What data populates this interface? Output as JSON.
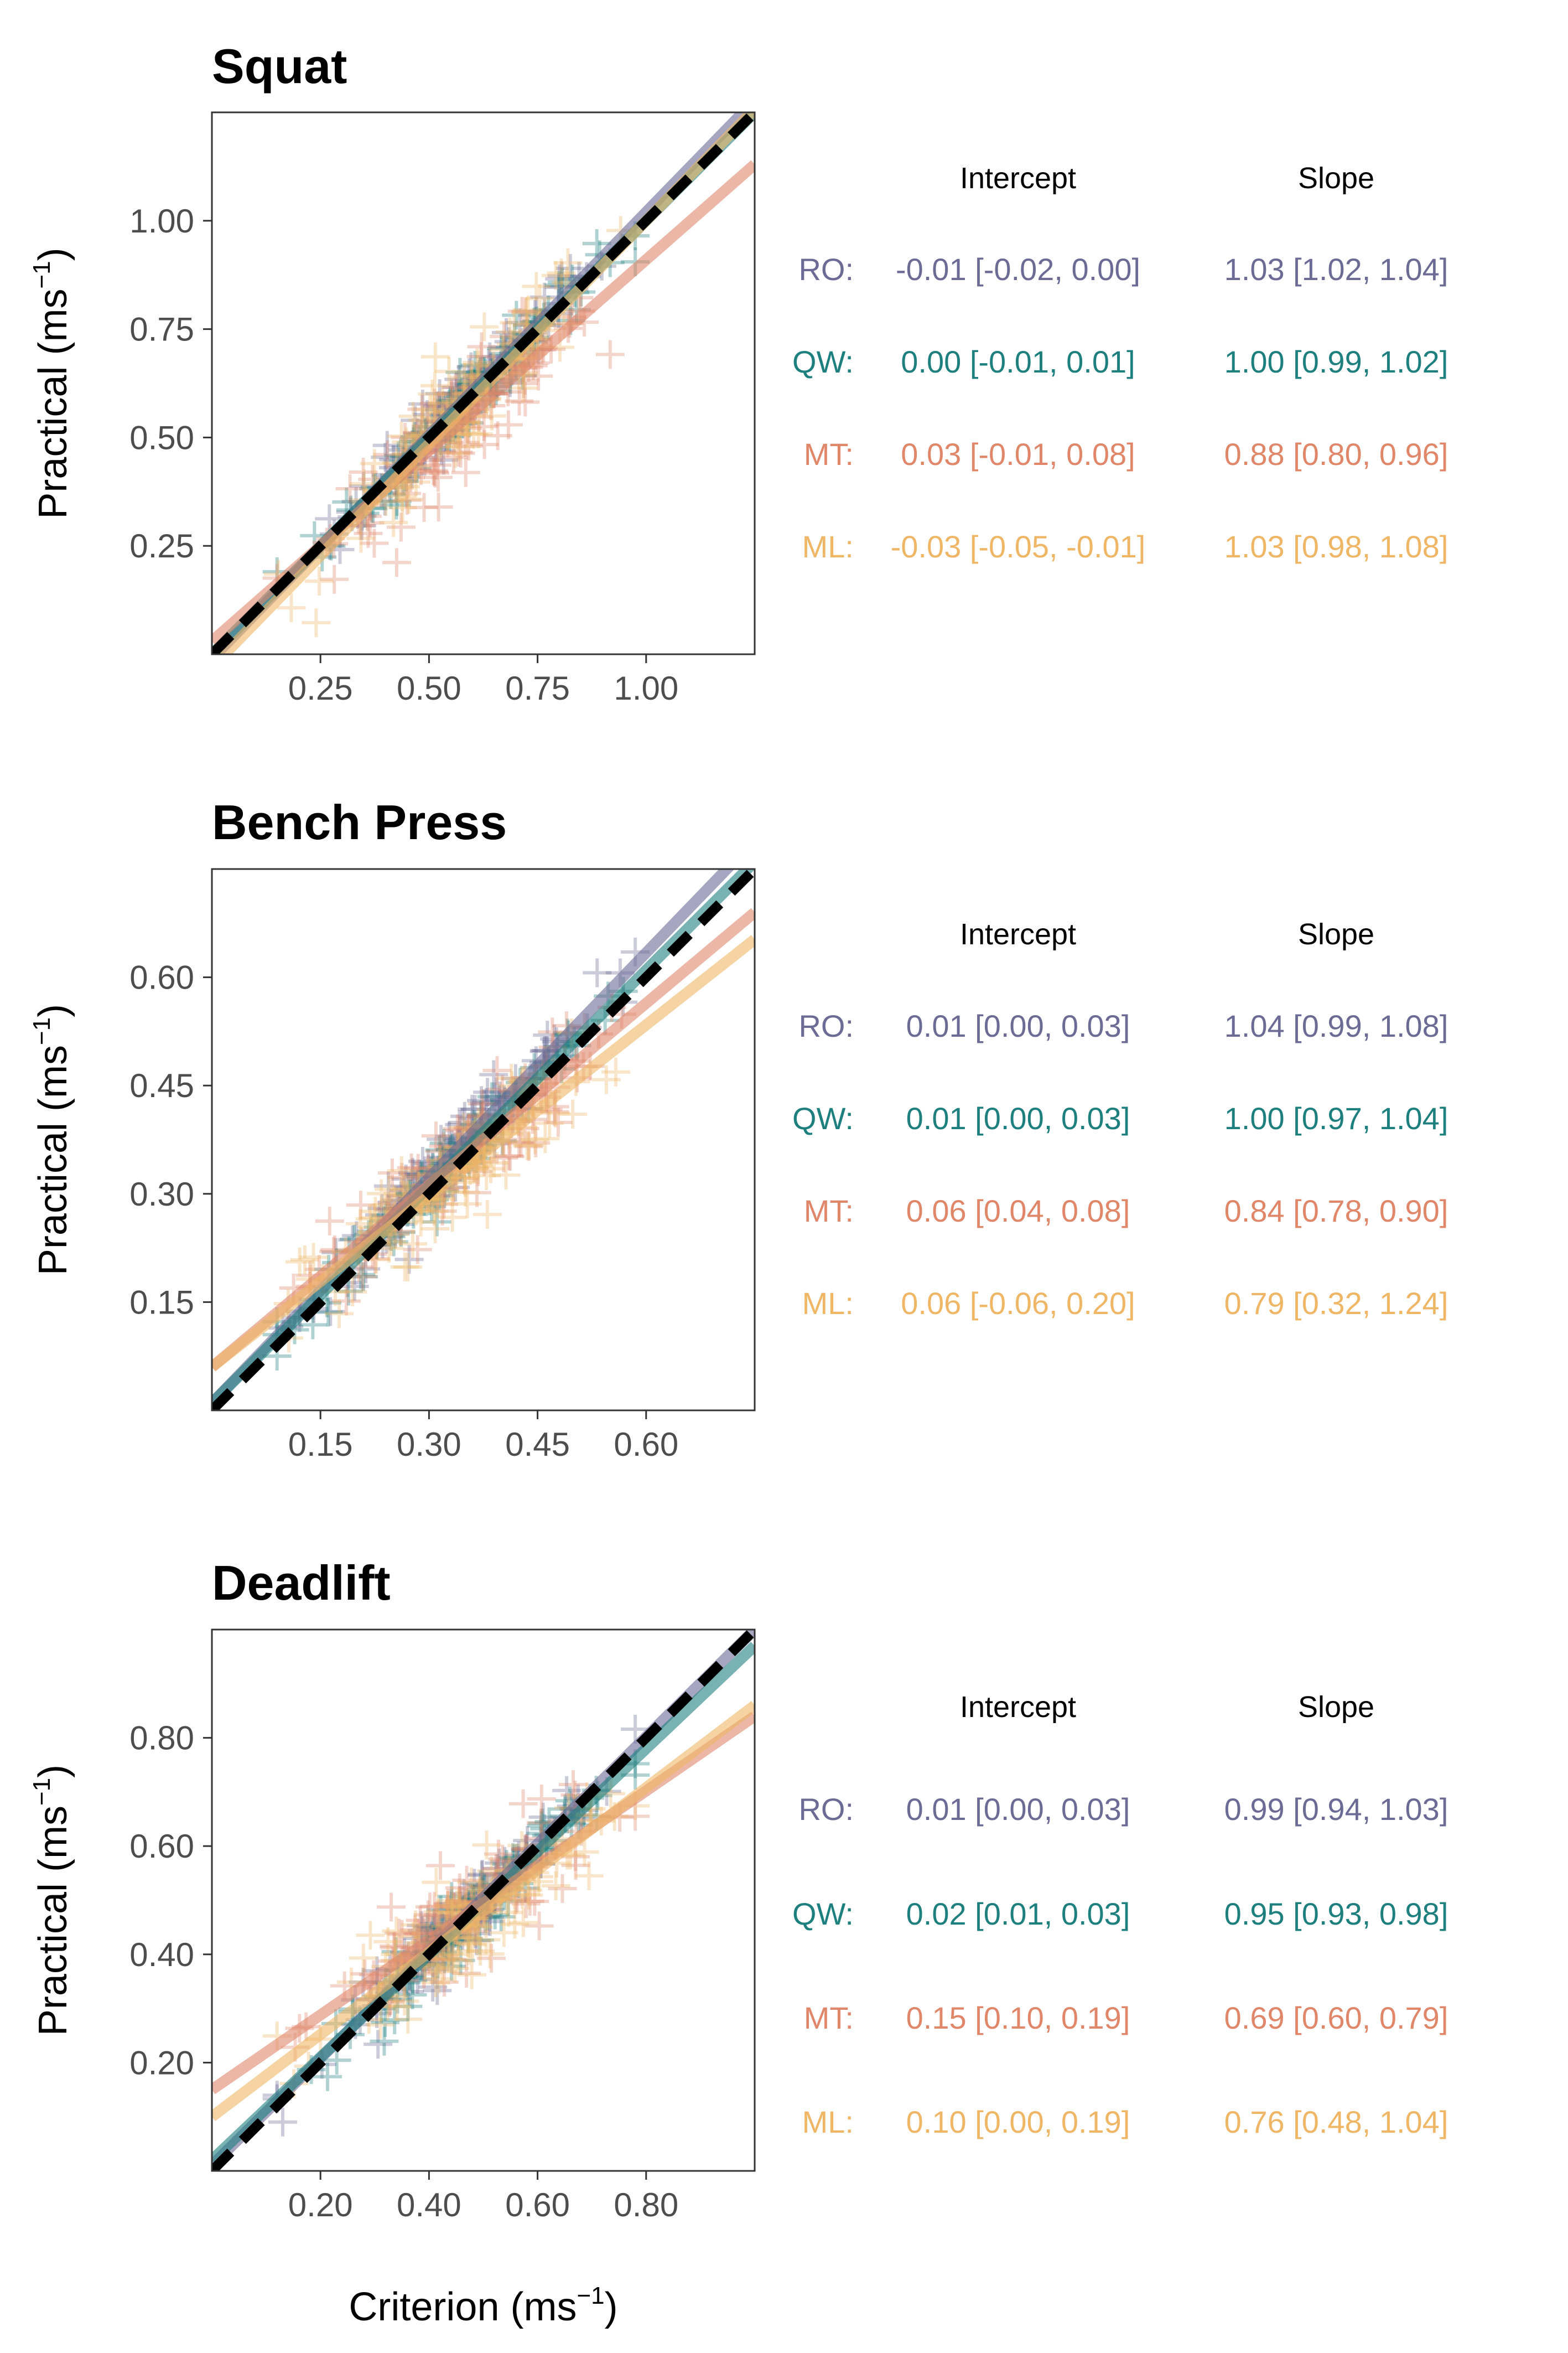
{
  "colors": {
    "RO": "#6b6b96",
    "QW": "#1e7f7f",
    "MT": "#e0876a",
    "ML": "#efb666",
    "identity": "#000000"
  },
  "table_headers": {
    "intercept": "Intercept",
    "slope": "Slope"
  },
  "chart_data": [
    {
      "type": "scatter",
      "title": "Squat",
      "xlabel": "",
      "ylabel": "Practical (ms",
      "ylabel_sup": "−1",
      "ylabel_close": ")",
      "xlim": [
        0.0,
        1.25
      ],
      "ylim": [
        0.0,
        1.25
      ],
      "xticks": [
        0.25,
        0.5,
        0.75,
        1.0
      ],
      "yticks": [
        0.25,
        0.5,
        0.75,
        1.0
      ],
      "xtick_labels": [
        "0.25",
        "0.50",
        "0.75",
        "1.00"
      ],
      "ytick_labels": [
        "0.25",
        "0.50",
        "0.75",
        "1.00"
      ],
      "x_center": 0.58,
      "x_spread": 0.15,
      "identity_line": true,
      "series": [
        {
          "key": "RO",
          "label": "RO:",
          "intercept": -0.01,
          "slope": 1.03,
          "intercept_text": "-0.01 [-0.02, 0.00]",
          "slope_text": "1.03 [1.02, 1.04]"
        },
        {
          "key": "QW",
          "label": "QW:",
          "intercept": 0.0,
          "slope": 1.0,
          "intercept_text": "0.00 [-0.01, 0.01]",
          "slope_text": "1.00 [0.99, 1.02]"
        },
        {
          "key": "MT",
          "label": "MT:",
          "intercept": 0.03,
          "slope": 0.88,
          "intercept_text": "0.03 [-0.01, 0.08]",
          "slope_text": "0.88 [0.80, 0.96]"
        },
        {
          "key": "ML",
          "label": "ML:",
          "intercept": -0.03,
          "slope": 1.03,
          "intercept_text": "-0.03 [-0.05, -0.01]",
          "slope_text": "1.03 [0.98, 1.08]"
        }
      ]
    },
    {
      "type": "scatter",
      "title": "Bench Press",
      "xlabel": "",
      "ylabel": "Practical (ms",
      "ylabel_sup": "−1",
      "ylabel_close": ")",
      "xlim": [
        0.0,
        0.75
      ],
      "ylim": [
        0.0,
        0.75
      ],
      "xticks": [
        0.15,
        0.3,
        0.45,
        0.6
      ],
      "yticks": [
        0.15,
        0.3,
        0.45,
        0.6
      ],
      "xtick_labels": [
        "0.15",
        "0.30",
        "0.45",
        "0.60"
      ],
      "ytick_labels": [
        "0.15",
        "0.30",
        "0.45",
        "0.60"
      ],
      "x_center": 0.33,
      "x_spread": 0.1,
      "identity_line": true,
      "series": [
        {
          "key": "RO",
          "label": "RO:",
          "intercept": 0.01,
          "slope": 1.04,
          "intercept_text": "0.01 [0.00, 0.03]",
          "slope_text": "1.04 [0.99, 1.08]"
        },
        {
          "key": "QW",
          "label": "QW:",
          "intercept": 0.01,
          "slope": 1.0,
          "intercept_text": "0.01 [0.00, 0.03]",
          "slope_text": "1.00 [0.97, 1.04]"
        },
        {
          "key": "MT",
          "label": "MT:",
          "intercept": 0.06,
          "slope": 0.84,
          "intercept_text": "0.06 [0.04, 0.08]",
          "slope_text": "0.84 [0.78, 0.90]"
        },
        {
          "key": "ML",
          "label": "ML:",
          "intercept": 0.06,
          "slope": 0.79,
          "intercept_text": "0.06 [-0.06, 0.20]",
          "slope_text": "0.79 [0.32, 1.24]"
        }
      ]
    },
    {
      "type": "scatter",
      "title": "Deadlift",
      "xlabel": "Criterion (ms",
      "xlabel_sup": "−1",
      "xlabel_close": ")",
      "ylabel": "Practical (ms",
      "ylabel_sup": "−1",
      "ylabel_close": ")",
      "xlim": [
        0.0,
        1.0
      ],
      "ylim": [
        0.0,
        1.0
      ],
      "xticks": [
        0.2,
        0.4,
        0.6,
        0.8
      ],
      "yticks": [
        0.2,
        0.4,
        0.6,
        0.8
      ],
      "xtick_labels": [
        "0.20",
        "0.40",
        "0.60",
        "0.80"
      ],
      "ytick_labels": [
        "0.20",
        "0.40",
        "0.60",
        "0.80"
      ],
      "x_center": 0.47,
      "x_spread": 0.12,
      "identity_line": true,
      "series": [
        {
          "key": "RO",
          "label": "RO:",
          "intercept": 0.01,
          "slope": 0.99,
          "intercept_text": "0.01 [0.00, 0.03]",
          "slope_text": "0.99 [0.94, 1.03]"
        },
        {
          "key": "QW",
          "label": "QW:",
          "intercept": 0.02,
          "slope": 0.95,
          "intercept_text": "0.02 [0.01, 0.03]",
          "slope_text": "0.95 [0.93, 0.98]"
        },
        {
          "key": "MT",
          "label": "MT:",
          "intercept": 0.15,
          "slope": 0.69,
          "intercept_text": "0.15 [0.10, 0.19]",
          "slope_text": "0.69 [0.60, 0.79]"
        },
        {
          "key": "ML",
          "label": "ML:",
          "intercept": 0.1,
          "slope": 0.76,
          "intercept_text": "0.10 [0.00, 0.19]",
          "slope_text": "0.76 [0.48, 1.04]"
        }
      ]
    }
  ]
}
